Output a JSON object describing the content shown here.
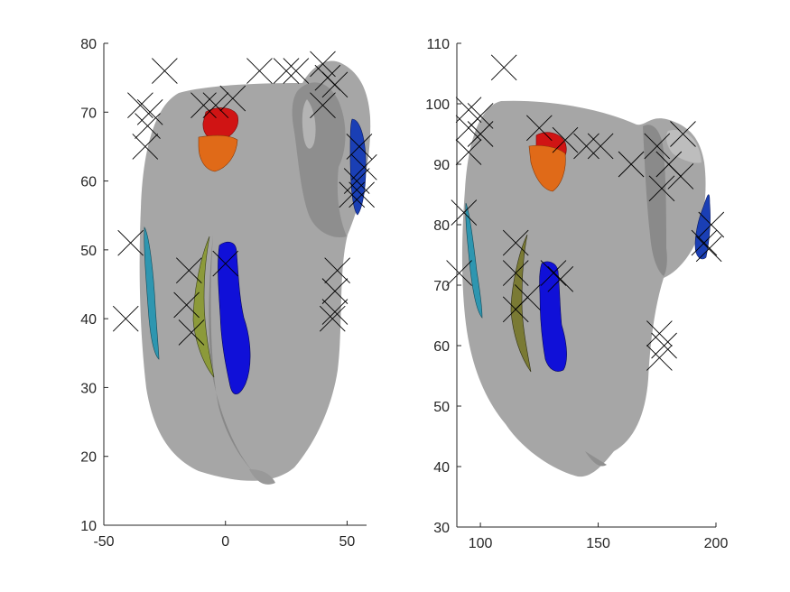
{
  "chart_data": [
    {
      "type": "scatter",
      "title": "",
      "xlabel": "",
      "ylabel": "",
      "xlim": [
        -50,
        58
      ],
      "ylim": [
        10,
        80
      ],
      "xticks": [
        -50,
        0,
        50
      ],
      "yticks": [
        10,
        20,
        30,
        40,
        50,
        60,
        70,
        80
      ],
      "tick_labels_x": [
        "-50",
        "0",
        "50"
      ],
      "tick_labels_y": [
        "10",
        "20",
        "30",
        "40",
        "50",
        "60",
        "70",
        "80"
      ],
      "background_shape_color": "#a6a6a6",
      "marker": "x",
      "marker_color": "#000000",
      "points": [
        [
          -25,
          76
        ],
        [
          -35,
          71
        ],
        [
          -31,
          70
        ],
        [
          -32,
          68
        ],
        [
          -33,
          65
        ],
        [
          -9,
          71
        ],
        [
          -4,
          71
        ],
        [
          3,
          72
        ],
        [
          14,
          76
        ],
        [
          25,
          76
        ],
        [
          29,
          76
        ],
        [
          40,
          77
        ],
        [
          42,
          75
        ],
        [
          45,
          74
        ],
        [
          40,
          71
        ],
        [
          55,
          65
        ],
        [
          57,
          62
        ],
        [
          54,
          60
        ],
        [
          52,
          58
        ],
        [
          56,
          58
        ],
        [
          -39,
          51
        ],
        [
          -41,
          40
        ],
        [
          -15,
          47
        ],
        [
          -16,
          42
        ],
        [
          -14,
          38
        ],
        [
          0,
          48
        ],
        [
          46,
          47
        ],
        [
          45,
          44
        ],
        [
          45,
          41
        ],
        [
          44,
          40
        ]
      ],
      "surfaces": [
        {
          "name": "red",
          "color": "#d01414",
          "x_range": [
            -10,
            6
          ],
          "y_range": [
            65,
            71
          ]
        },
        {
          "name": "orange",
          "color": "#e06a18",
          "x_range": [
            -12,
            6
          ],
          "y_range": [
            61,
            67
          ]
        },
        {
          "name": "blue-right",
          "color": "#1a3fb5",
          "x_range": [
            51,
            57
          ],
          "y_range": [
            55,
            69
          ]
        },
        {
          "name": "teal",
          "color": "#2e96b0",
          "x_range": [
            -33,
            -28
          ],
          "y_range": [
            34,
            53
          ]
        },
        {
          "name": "olive",
          "color": "#8c9a3a",
          "x_range": [
            -14,
            -5
          ],
          "y_range": [
            33,
            53
          ]
        },
        {
          "name": "blue",
          "color": "#1010d8",
          "x_range": [
            -5,
            10
          ],
          "y_range": [
            29,
            51
          ]
        }
      ]
    },
    {
      "type": "scatter",
      "title": "",
      "xlabel": "",
      "ylabel": "",
      "xlim": [
        90,
        200
      ],
      "ylim": [
        30,
        110
      ],
      "xticks": [
        100,
        150,
        200
      ],
      "yticks": [
        30,
        40,
        50,
        60,
        70,
        80,
        90,
        100,
        110
      ],
      "tick_labels_x": [
        "100",
        "150",
        "200"
      ],
      "tick_labels_y": [
        "30",
        "40",
        "50",
        "60",
        "70",
        "80",
        "90",
        "100",
        "110"
      ],
      "background_shape_color": "#a6a6a6",
      "marker": "x",
      "marker_color": "#000000",
      "points": [
        [
          110,
          106
        ],
        [
          95,
          99
        ],
        [
          100,
          98
        ],
        [
          95,
          96
        ],
        [
          100,
          95
        ],
        [
          95,
          92
        ],
        [
          125,
          96
        ],
        [
          136,
          94
        ],
        [
          145,
          93
        ],
        [
          151,
          93
        ],
        [
          164,
          90
        ],
        [
          175,
          93
        ],
        [
          180,
          90
        ],
        [
          186,
          95
        ],
        [
          185,
          88
        ],
        [
          177,
          86
        ],
        [
          93,
          82
        ],
        [
          91,
          72
        ],
        [
          198,
          80
        ],
        [
          195,
          77
        ],
        [
          197,
          76
        ],
        [
          115,
          77
        ],
        [
          115,
          72
        ],
        [
          120,
          68
        ],
        [
          115,
          66
        ],
        [
          131,
          72
        ],
        [
          134,
          71
        ],
        [
          176,
          62
        ],
        [
          178,
          60
        ],
        [
          176,
          58
        ]
      ],
      "surfaces": [
        {
          "name": "red",
          "color": "#d01414",
          "x_range": [
            126,
            137
          ],
          "y_range": [
            89,
            95
          ]
        },
        {
          "name": "orange",
          "color": "#e06a18",
          "x_range": [
            124,
            137
          ],
          "y_range": [
            85,
            92
          ]
        },
        {
          "name": "blue-right",
          "color": "#1a3fb5",
          "x_range": [
            193,
            200
          ],
          "y_range": [
            74,
            81
          ]
        },
        {
          "name": "teal",
          "color": "#2e96b0",
          "x_range": [
            103,
            106
          ],
          "y_range": [
            65,
            83
          ]
        },
        {
          "name": "olive",
          "color": "#7a7a34",
          "x_range": [
            115,
            123
          ],
          "y_range": [
            56,
            78
          ]
        },
        {
          "name": "blue",
          "color": "#1010d8",
          "x_range": [
            128,
            137
          ],
          "y_range": [
            56,
            74
          ]
        }
      ]
    }
  ]
}
